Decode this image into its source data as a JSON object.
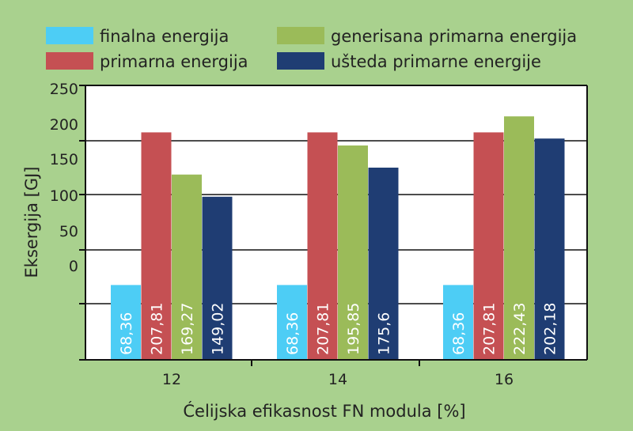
{
  "chart_data": {
    "type": "bar",
    "categories": [
      "12",
      "14",
      "16"
    ],
    "series": [
      {
        "name": "finalna energija",
        "color": "#4dcdf5",
        "values": [
          68.36,
          68.36,
          68.36
        ],
        "labels": [
          "68,36",
          "68,36",
          "68,36"
        ]
      },
      {
        "name": "primarna energija",
        "color": "#c55053",
        "values": [
          207.81,
          207.81,
          207.81
        ],
        "labels": [
          "207,81",
          "207,81",
          "207,81"
        ]
      },
      {
        "name": "generisana primarna energija",
        "color": "#9bbb59",
        "values": [
          169.27,
          195.85,
          222.43
        ],
        "labels": [
          "169,27",
          "195,85",
          "222,43"
        ]
      },
      {
        "name": "ušteda primarne energije",
        "color": "#1f3d73",
        "values": [
          149.02,
          175.6,
          202.18
        ],
        "labels": [
          "149,02",
          "175,6",
          "202,18"
        ]
      }
    ],
    "yticks": [
      "250",
      "200",
      "150",
      "100",
      "50",
      "0"
    ],
    "xlabel": "Ćelijska efikasnost FN modula [%]",
    "ylabel": "Eksergija [GJ]",
    "grid": true,
    "legend_position": "top"
  }
}
